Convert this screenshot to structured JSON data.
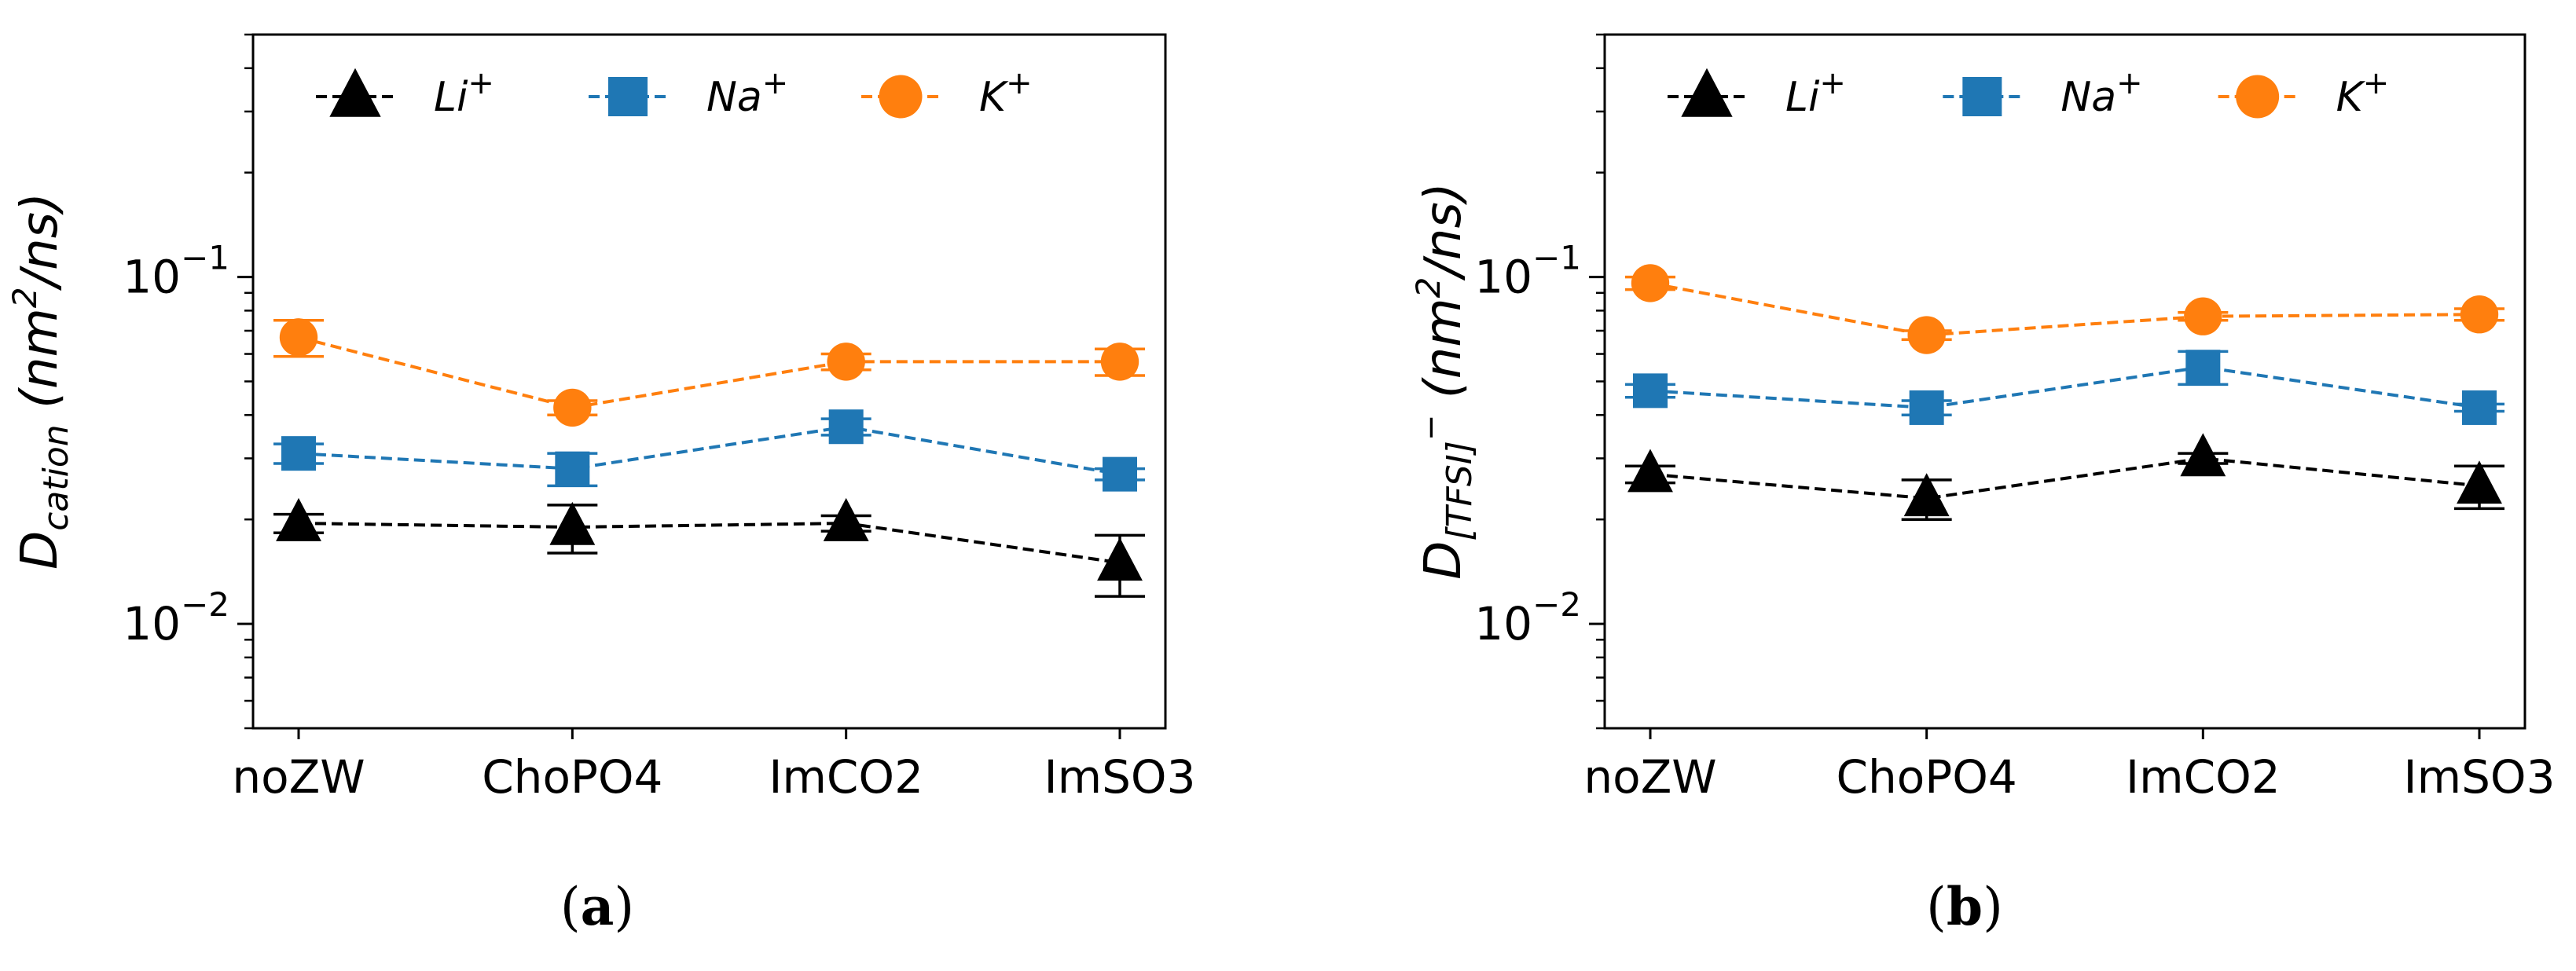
{
  "chart_data": [
    {
      "type": "line",
      "panel_label": "(a)",
      "panel_letter": "a",
      "ylabel_main": "D",
      "ylabel_sub": "cation",
      "ylabel_units_pre": "(nm",
      "ylabel_units_exp": "2",
      "ylabel_units_post": "/ns)",
      "yscale": "log",
      "ylim": [
        0.005,
        0.5
      ],
      "yticks": [
        {
          "base": "10",
          "exp": "−1",
          "value": 0.1
        },
        {
          "base": "10",
          "exp": "−2",
          "value": 0.01
        }
      ],
      "categories": [
        "noZW",
        "ChoPO4",
        "ImCO2",
        "ImSO3"
      ],
      "legend": {
        "location": "top",
        "entries": [
          "Li",
          "Na",
          "K"
        ],
        "sup": "+"
      },
      "series": [
        {
          "name": "Li⁺",
          "color": "#000000",
          "marker": "triangle",
          "values": [
            0.0195,
            0.019,
            0.0195,
            0.015
          ],
          "errors": [
            0.0012,
            0.003,
            0.001,
            0.003
          ]
        },
        {
          "name": "Na⁺",
          "color": "#1f77b4",
          "marker": "square",
          "values": [
            0.031,
            0.028,
            0.037,
            0.027
          ],
          "errors": [
            0.002,
            0.003,
            0.002,
            0.001
          ]
        },
        {
          "name": "K⁺",
          "color": "#ff7f0e",
          "marker": "circle",
          "values": [
            0.067,
            0.042,
            0.057,
            0.057
          ],
          "errors": [
            0.008,
            0.002,
            0.003,
            0.005
          ]
        }
      ]
    },
    {
      "type": "line",
      "panel_label": "(b)",
      "panel_letter": "b",
      "ylabel_main": "D",
      "ylabel_sub": "[TFSI]",
      "ylabel_sub_sup": "−",
      "ylabel_units_pre": "(nm",
      "ylabel_units_exp": "2",
      "ylabel_units_post": "/ns)",
      "yscale": "log",
      "ylim": [
        0.005,
        0.5
      ],
      "yticks": [
        {
          "base": "10",
          "exp": "−1",
          "value": 0.1
        },
        {
          "base": "10",
          "exp": "−2",
          "value": 0.01
        }
      ],
      "categories": [
        "noZW",
        "ChoPO4",
        "ImCO2",
        "ImSO3"
      ],
      "legend": {
        "location": "top",
        "entries": [
          "Li",
          "Na",
          "K"
        ],
        "sup": "+"
      },
      "series": [
        {
          "name": "Li⁺",
          "color": "#000000",
          "marker": "triangle",
          "values": [
            0.027,
            0.023,
            0.03,
            0.025
          ],
          "errors": [
            0.0015,
            0.003,
            0.001,
            0.0035
          ]
        },
        {
          "name": "Na⁺",
          "color": "#1f77b4",
          "marker": "square",
          "values": [
            0.047,
            0.042,
            0.055,
            0.042
          ],
          "errors": [
            0.002,
            0.002,
            0.006,
            0.001
          ]
        },
        {
          "name": "K⁺",
          "color": "#ff7f0e",
          "marker": "circle",
          "values": [
            0.096,
            0.068,
            0.077,
            0.078
          ],
          "errors": [
            0.004,
            0.002,
            0.002,
            0.003
          ]
        }
      ]
    }
  ]
}
